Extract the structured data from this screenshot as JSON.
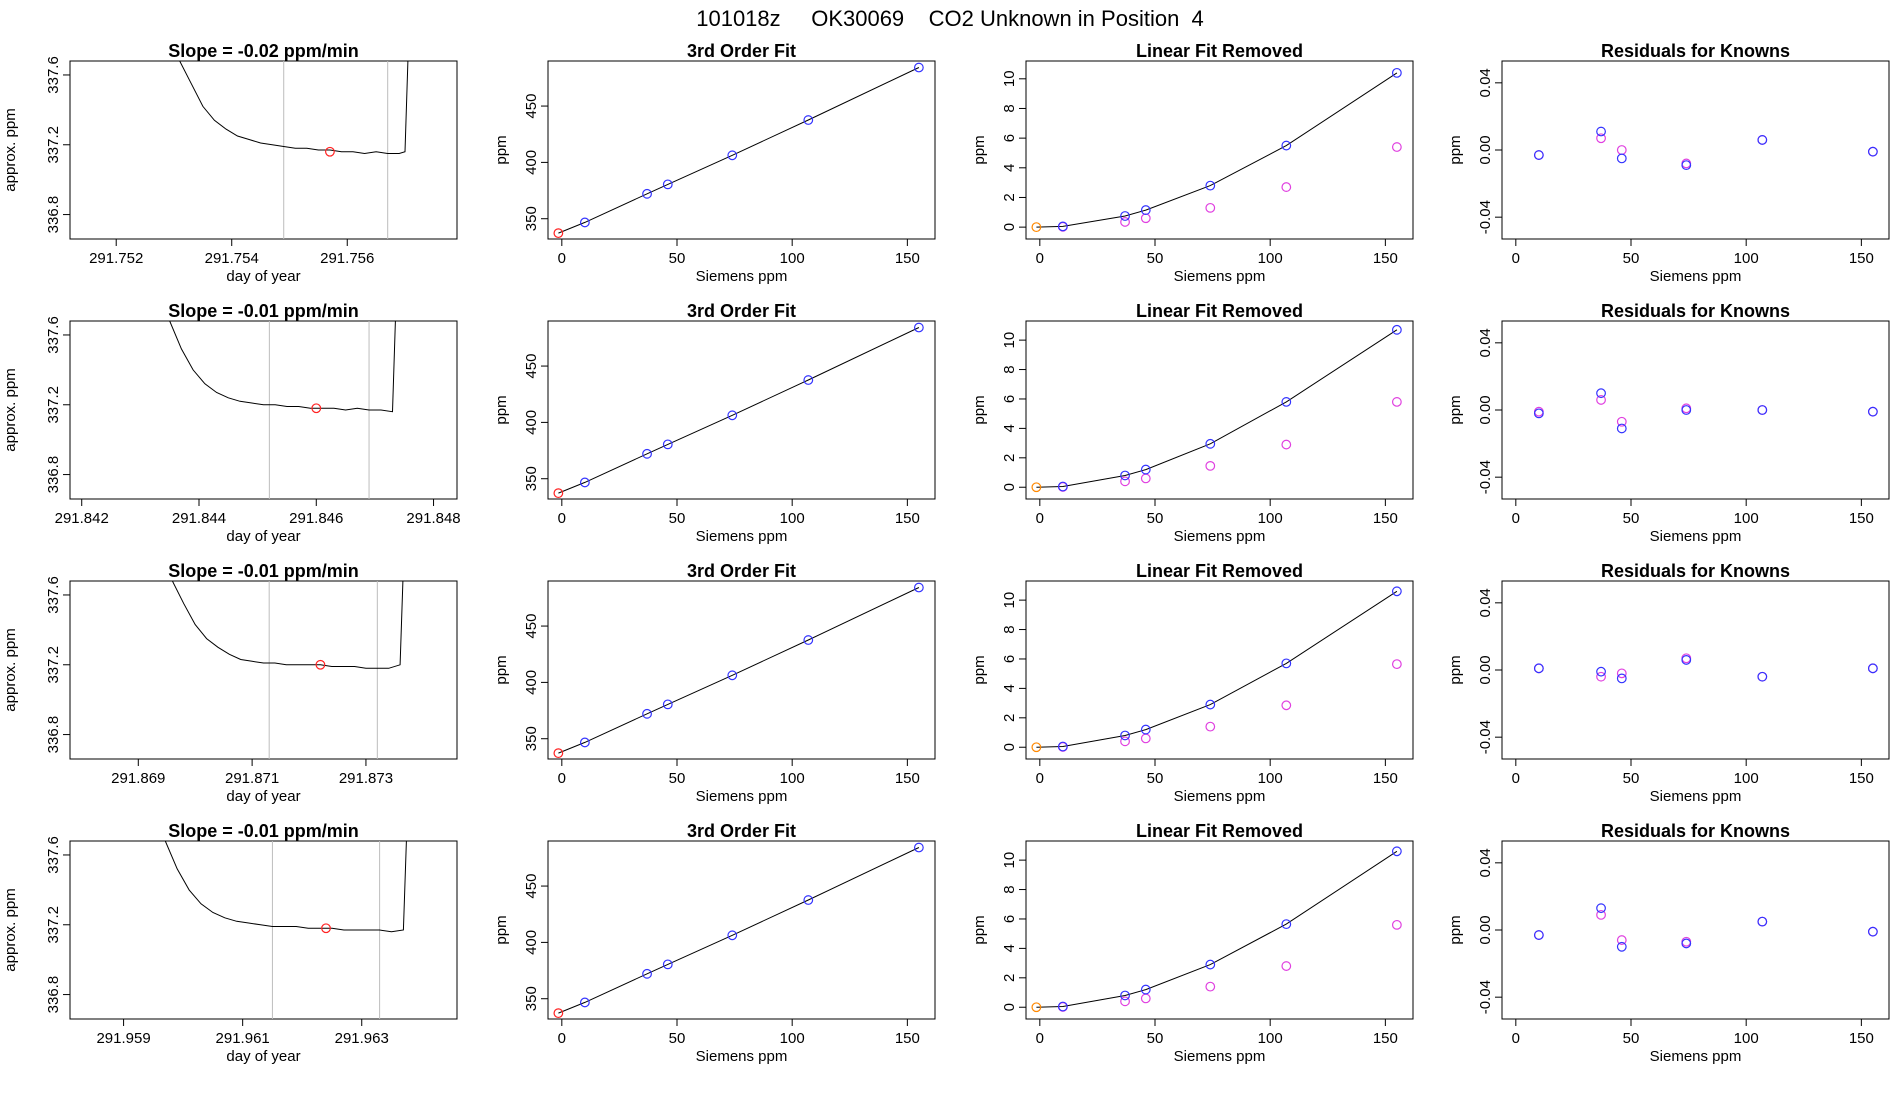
{
  "figure_title": "101018z     OK30069    CO2 Unknown in Position  4",
  "colors": {
    "known": "#3333ff",
    "unknown": "#ff2222",
    "linear_removed": "#e040e0",
    "zero": "#ff8800",
    "curve": "#000000",
    "window": "#bdbdbd"
  },
  "chart_data": [
    {
      "type": "line",
      "row": 1,
      "column": "drift",
      "title": "Slope =  -0.02  ppm/min",
      "xlabel": "day of year",
      "ylabel": "approx. ppm",
      "xlim": [
        291.7512,
        291.7579
      ],
      "ylim": [
        336.66,
        337.68
      ],
      "xticks": [
        291.752,
        291.754,
        291.756
      ],
      "xtick_labels": [
        "291.752",
        "291.754",
        "291.756"
      ],
      "yticks": [
        336.8,
        337.2,
        337.6
      ],
      "ytick_labels": [
        "336.8",
        "337.2",
        "337.6"
      ],
      "averaging_window": [
        291.7549,
        291.7567
      ],
      "unknown_point": {
        "x": 291.7557,
        "y": 337.16
      },
      "x": [
        291.7531,
        291.7533,
        291.7535,
        291.7537,
        291.7539,
        291.7541,
        291.7543,
        291.7545,
        291.7547,
        291.7549,
        291.7551,
        291.7553,
        291.7555,
        291.7557,
        291.7559,
        291.7561,
        291.7563,
        291.7565,
        291.7567,
        291.7569,
        291.757,
        291.75705
      ],
      "y": [
        337.68,
        337.55,
        337.42,
        337.34,
        337.29,
        337.25,
        337.23,
        337.21,
        337.2,
        337.19,
        337.18,
        337.18,
        337.17,
        337.17,
        337.16,
        337.16,
        337.15,
        337.16,
        337.15,
        337.15,
        337.16,
        337.68
      ]
    },
    {
      "type": "scatter",
      "row": 1,
      "column": "fit",
      "title": "3rd Order Fit",
      "xlabel": "Siemens ppm",
      "ylabel": "ppm",
      "xlim": [
        -6,
        162
      ],
      "ylim": [
        332,
        490
      ],
      "xticks": [
        0,
        50,
        100,
        150
      ],
      "xtick_labels": [
        "0",
        "50",
        "100",
        "150"
      ],
      "yticks": [
        350,
        400,
        450
      ],
      "ytick_labels": [
        "350",
        "400",
        "450"
      ],
      "knowns": {
        "x": [
          10,
          37,
          46,
          74,
          107,
          155
        ],
        "y": [
          346.7,
          372.1,
          380.5,
          406.3,
          437.6,
          484.2
        ]
      },
      "unknown": {
        "x": -1.5,
        "y": 337.2
      }
    },
    {
      "type": "scatter",
      "row": 1,
      "column": "linear_removed",
      "title": "Linear Fit Removed",
      "xlabel": "Siemens ppm",
      "ylabel": "ppm",
      "xlim": [
        -6,
        162
      ],
      "ylim": [
        -0.8,
        11.2
      ],
      "xticks": [
        0,
        50,
        100,
        150
      ],
      "xtick_labels": [
        "0",
        "50",
        "100",
        "150"
      ],
      "yticks": [
        0,
        2,
        4,
        6,
        8,
        10
      ],
      "ytick_labels": [
        "0",
        "2",
        "4",
        "6",
        "8",
        "10"
      ],
      "knowns": {
        "x": [
          10,
          37,
          46,
          74,
          107,
          155
        ],
        "y": [
          0.05,
          0.75,
          1.15,
          2.8,
          5.5,
          10.4
        ]
      },
      "linear_removed_points": {
        "x": [
          10,
          37,
          46,
          74,
          107,
          155
        ],
        "y": [
          0.02,
          0.35,
          0.6,
          1.3,
          2.7,
          5.4
        ]
      },
      "unknown": {
        "x": -1.5,
        "y": 0.0
      }
    },
    {
      "type": "scatter",
      "row": 1,
      "column": "residuals",
      "title": "Residuals for Knowns",
      "xlabel": "Siemens ppm",
      "ylabel": "ppm",
      "xlim": [
        -6,
        162
      ],
      "ylim": [
        -0.053,
        0.053
      ],
      "xticks": [
        0,
        50,
        100,
        150
      ],
      "xtick_labels": [
        "0",
        "50",
        "100",
        "150"
      ],
      "yticks": [
        -0.04,
        0.0,
        0.04
      ],
      "ytick_labels": [
        "-0.04",
        "0.00",
        "0.04"
      ],
      "knowns": {
        "x": [
          10,
          37,
          46,
          74,
          107,
          155
        ],
        "y": [
          -0.003,
          0.011,
          -0.005,
          -0.009,
          0.006,
          -0.001
        ]
      },
      "fit_points": {
        "x": [
          10,
          37,
          46,
          74,
          107,
          155
        ],
        "y": [
          -0.003,
          0.007,
          0.0,
          -0.008,
          0.006,
          -0.001
        ]
      }
    },
    {
      "type": "line",
      "row": 2,
      "column": "drift",
      "title": "Slope =  -0.01  ppm/min",
      "xlabel": "day of year",
      "ylabel": "approx. ppm",
      "xlim": [
        291.8418,
        291.8484
      ],
      "ylim": [
        336.66,
        337.68
      ],
      "xticks": [
        291.842,
        291.844,
        291.846,
        291.848
      ],
      "xtick_labels": [
        "291.842",
        "291.844",
        "291.846",
        "291.848"
      ],
      "yticks": [
        336.8,
        337.2,
        337.6
      ],
      "ytick_labels": [
        "336.8",
        "337.2",
        "337.6"
      ],
      "averaging_window": [
        291.8452,
        291.8469
      ],
      "unknown_point": {
        "x": 291.846,
        "y": 337.18
      },
      "x": [
        291.8435,
        291.8437,
        291.8439,
        291.8441,
        291.8443,
        291.8445,
        291.8447,
        291.8449,
        291.8451,
        291.8453,
        291.8455,
        291.8457,
        291.8459,
        291.8461,
        291.8463,
        291.8465,
        291.8467,
        291.8469,
        291.8471,
        291.8473,
        291.84735
      ],
      "y": [
        337.68,
        337.52,
        337.4,
        337.32,
        337.27,
        337.24,
        337.22,
        337.21,
        337.2,
        337.2,
        337.19,
        337.19,
        337.18,
        337.18,
        337.18,
        337.17,
        337.18,
        337.17,
        337.17,
        337.16,
        337.68
      ]
    },
    {
      "type": "scatter",
      "row": 2,
      "column": "fit",
      "title": "3rd Order Fit",
      "xlabel": "Siemens ppm",
      "ylabel": "ppm",
      "xlim": [
        -6,
        162
      ],
      "ylim": [
        332,
        490
      ],
      "xticks": [
        0,
        50,
        100,
        150
      ],
      "xtick_labels": [
        "0",
        "50",
        "100",
        "150"
      ],
      "yticks": [
        350,
        400,
        450
      ],
      "ytick_labels": [
        "350",
        "400",
        "450"
      ],
      "knowns": {
        "x": [
          10,
          37,
          46,
          74,
          107,
          155
        ],
        "y": [
          346.7,
          372.1,
          380.5,
          406.3,
          437.6,
          484.2
        ]
      },
      "unknown": {
        "x": -1.5,
        "y": 337.2
      }
    },
    {
      "type": "scatter",
      "row": 2,
      "column": "linear_removed",
      "title": "Linear Fit Removed",
      "xlabel": "Siemens ppm",
      "ylabel": "ppm",
      "xlim": [
        -6,
        162
      ],
      "ylim": [
        -0.8,
        11.3
      ],
      "xticks": [
        0,
        50,
        100,
        150
      ],
      "xtick_labels": [
        "0",
        "50",
        "100",
        "150"
      ],
      "yticks": [
        0,
        2,
        4,
        6,
        8,
        10
      ],
      "ytick_labels": [
        "0",
        "2",
        "4",
        "6",
        "8",
        "10"
      ],
      "knowns": {
        "x": [
          10,
          37,
          46,
          74,
          107,
          155
        ],
        "y": [
          0.05,
          0.8,
          1.2,
          2.95,
          5.8,
          10.7
        ]
      },
      "linear_removed_points": {
        "x": [
          10,
          37,
          46,
          74,
          107,
          155
        ],
        "y": [
          0.02,
          0.4,
          0.6,
          1.45,
          2.9,
          5.8
        ]
      },
      "unknown": {
        "x": -1.5,
        "y": 0.0
      }
    },
    {
      "type": "scatter",
      "row": 2,
      "column": "residuals",
      "title": "Residuals for Knowns",
      "xlabel": "Siemens ppm",
      "ylabel": "ppm",
      "xlim": [
        -6,
        162
      ],
      "ylim": [
        -0.053,
        0.053
      ],
      "xticks": [
        0,
        50,
        100,
        150
      ],
      "xtick_labels": [
        "0",
        "50",
        "100",
        "150"
      ],
      "yticks": [
        -0.04,
        0.0,
        0.04
      ],
      "ytick_labels": [
        "-0.04",
        "0.00",
        "0.04"
      ],
      "knowns": {
        "x": [
          10,
          37,
          46,
          74,
          107,
          155
        ],
        "y": [
          -0.002,
          0.01,
          -0.011,
          0.0,
          0.0,
          -0.001
        ]
      },
      "fit_points": {
        "x": [
          10,
          37,
          46,
          74,
          107,
          155
        ],
        "y": [
          -0.001,
          0.006,
          -0.007,
          0.001,
          0.0,
          -0.001
        ]
      }
    },
    {
      "type": "line",
      "row": 3,
      "column": "drift",
      "title": "Slope =  -0.01  ppm/min",
      "xlabel": "day of year",
      "ylabel": "approx. ppm",
      "xlim": [
        291.8678,
        291.8746
      ],
      "ylim": [
        336.66,
        337.68
      ],
      "xticks": [
        291.869,
        291.871,
        291.873
      ],
      "xtick_labels": [
        "291.869",
        "291.871",
        "291.873"
      ],
      "yticks": [
        336.8,
        337.2,
        337.6
      ],
      "ytick_labels": [
        "336.8",
        "337.2",
        "337.6"
      ],
      "averaging_window": [
        291.8713,
        291.8732
      ],
      "unknown_point": {
        "x": 291.8722,
        "y": 337.2
      },
      "x": [
        291.8696,
        291.8698,
        291.87,
        291.8702,
        291.8704,
        291.8706,
        291.8708,
        291.871,
        291.8712,
        291.8714,
        291.8716,
        291.8718,
        291.872,
        291.8722,
        291.8724,
        291.8726,
        291.8728,
        291.873,
        291.8732,
        291.8734,
        291.8736,
        291.87365
      ],
      "y": [
        337.68,
        337.55,
        337.43,
        337.35,
        337.3,
        337.26,
        337.23,
        337.22,
        337.21,
        337.21,
        337.2,
        337.2,
        337.2,
        337.2,
        337.19,
        337.19,
        337.19,
        337.18,
        337.18,
        337.18,
        337.2,
        337.68
      ]
    },
    {
      "type": "scatter",
      "row": 3,
      "column": "fit",
      "title": "3rd Order Fit",
      "xlabel": "Siemens ppm",
      "ylabel": "ppm",
      "xlim": [
        -6,
        162
      ],
      "ylim": [
        332,
        490
      ],
      "xticks": [
        0,
        50,
        100,
        150
      ],
      "xtick_labels": [
        "0",
        "50",
        "100",
        "150"
      ],
      "yticks": [
        350,
        400,
        450
      ],
      "ytick_labels": [
        "350",
        "400",
        "450"
      ],
      "knowns": {
        "x": [
          10,
          37,
          46,
          74,
          107,
          155
        ],
        "y": [
          346.7,
          372.1,
          380.5,
          406.3,
          437.6,
          484.2
        ]
      },
      "unknown": {
        "x": -1.5,
        "y": 337.2
      }
    },
    {
      "type": "scatter",
      "row": 3,
      "column": "linear_removed",
      "title": "Linear Fit Removed",
      "xlabel": "Siemens ppm",
      "ylabel": "ppm",
      "xlim": [
        -6,
        162
      ],
      "ylim": [
        -0.8,
        11.3
      ],
      "xticks": [
        0,
        50,
        100,
        150
      ],
      "xtick_labels": [
        "0",
        "50",
        "100",
        "150"
      ],
      "yticks": [
        0,
        2,
        4,
        6,
        8,
        10
      ],
      "ytick_labels": [
        "0",
        "2",
        "4",
        "6",
        "8",
        "10"
      ],
      "knowns": {
        "x": [
          10,
          37,
          46,
          74,
          107,
          155
        ],
        "y": [
          0.05,
          0.8,
          1.2,
          2.9,
          5.7,
          10.6
        ]
      },
      "linear_removed_points": {
        "x": [
          10,
          37,
          46,
          74,
          107,
          155
        ],
        "y": [
          0.02,
          0.4,
          0.6,
          1.4,
          2.85,
          5.65
        ]
      },
      "unknown": {
        "x": -1.5,
        "y": 0.0
      }
    },
    {
      "type": "scatter",
      "row": 3,
      "column": "residuals",
      "title": "Residuals for Knowns",
      "xlabel": "Siemens ppm",
      "ylabel": "ppm",
      "xlim": [
        -6,
        162
      ],
      "ylim": [
        -0.053,
        0.053
      ],
      "xticks": [
        0,
        50,
        100,
        150
      ],
      "xtick_labels": [
        "0",
        "50",
        "100",
        "150"
      ],
      "yticks": [
        -0.04,
        0.0,
        0.04
      ],
      "ytick_labels": [
        "-0.04",
        "0.00",
        "0.04"
      ],
      "knowns": {
        "x": [
          10,
          37,
          46,
          74,
          107,
          155
        ],
        "y": [
          0.001,
          -0.001,
          -0.005,
          0.006,
          -0.004,
          0.001
        ]
      },
      "fit_points": {
        "x": [
          10,
          37,
          46,
          74,
          107,
          155
        ],
        "y": [
          0.001,
          -0.004,
          -0.002,
          0.007,
          -0.004,
          0.001
        ]
      }
    },
    {
      "type": "line",
      "row": 4,
      "column": "drift",
      "title": "Slope =  -0.01  ppm/min",
      "xlabel": "day of year",
      "ylabel": "approx. ppm",
      "xlim": [
        291.9581,
        291.9646
      ],
      "ylim": [
        336.66,
        337.68
      ],
      "xticks": [
        291.959,
        291.961,
        291.963
      ],
      "xtick_labels": [
        "291.959",
        "291.961",
        "291.963"
      ],
      "yticks": [
        336.8,
        337.2,
        337.6
      ],
      "ytick_labels": [
        "336.8",
        "337.2",
        "337.6"
      ],
      "averaging_window": [
        291.9615,
        291.9633
      ],
      "unknown_point": {
        "x": 291.9624,
        "y": 337.18
      },
      "x": [
        291.9597,
        291.9599,
        291.9601,
        291.9603,
        291.9605,
        291.9607,
        291.9609,
        291.9611,
        291.9613,
        291.9615,
        291.9617,
        291.9619,
        291.9621,
        291.9623,
        291.9625,
        291.9627,
        291.9629,
        291.9631,
        291.9633,
        291.9635,
        291.9637,
        291.96375
      ],
      "y": [
        337.68,
        337.52,
        337.4,
        337.32,
        337.27,
        337.24,
        337.22,
        337.21,
        337.2,
        337.19,
        337.19,
        337.19,
        337.18,
        337.18,
        337.18,
        337.17,
        337.17,
        337.17,
        337.17,
        337.16,
        337.17,
        337.68
      ]
    },
    {
      "type": "scatter",
      "row": 4,
      "column": "fit",
      "title": "3rd Order Fit",
      "xlabel": "Siemens ppm",
      "ylabel": "ppm",
      "xlim": [
        -6,
        162
      ],
      "ylim": [
        332,
        490
      ],
      "xticks": [
        0,
        50,
        100,
        150
      ],
      "xtick_labels": [
        "0",
        "50",
        "100",
        "150"
      ],
      "yticks": [
        350,
        400,
        450
      ],
      "ytick_labels": [
        "350",
        "400",
        "450"
      ],
      "knowns": {
        "x": [
          10,
          37,
          46,
          74,
          107,
          155
        ],
        "y": [
          346.7,
          372.1,
          380.5,
          406.3,
          437.6,
          484.2
        ]
      },
      "unknown": {
        "x": -1.5,
        "y": 337.2
      }
    },
    {
      "type": "scatter",
      "row": 4,
      "column": "linear_removed",
      "title": "Linear Fit Removed",
      "xlabel": "Siemens ppm",
      "ylabel": "ppm",
      "xlim": [
        -6,
        162
      ],
      "ylim": [
        -0.8,
        11.3
      ],
      "xticks": [
        0,
        50,
        100,
        150
      ],
      "xtick_labels": [
        "0",
        "50",
        "100",
        "150"
      ],
      "yticks": [
        0,
        2,
        4,
        6,
        8,
        10
      ],
      "ytick_labels": [
        "0",
        "2",
        "4",
        "6",
        "8",
        "10"
      ],
      "knowns": {
        "x": [
          10,
          37,
          46,
          74,
          107,
          155
        ],
        "y": [
          0.05,
          0.8,
          1.2,
          2.9,
          5.65,
          10.6
        ]
      },
      "linear_removed_points": {
        "x": [
          10,
          37,
          46,
          74,
          107,
          155
        ],
        "y": [
          0.02,
          0.4,
          0.6,
          1.4,
          2.8,
          5.6
        ]
      },
      "unknown": {
        "x": -1.5,
        "y": 0.0
      }
    },
    {
      "type": "scatter",
      "row": 4,
      "column": "residuals",
      "title": "Residuals for Knowns",
      "xlabel": "Siemens ppm",
      "ylabel": "ppm",
      "xlim": [
        -6,
        162
      ],
      "ylim": [
        -0.053,
        0.053
      ],
      "xticks": [
        0,
        50,
        100,
        150
      ],
      "xtick_labels": [
        "0",
        "50",
        "100",
        "150"
      ],
      "yticks": [
        -0.04,
        0.0,
        0.04
      ],
      "ytick_labels": [
        "-0.04",
        "0.00",
        "0.04"
      ],
      "knowns": {
        "x": [
          10,
          37,
          46,
          74,
          107,
          155
        ],
        "y": [
          -0.003,
          0.013,
          -0.01,
          -0.008,
          0.005,
          -0.001
        ]
      },
      "fit_points": {
        "x": [
          10,
          37,
          46,
          74,
          107,
          155
        ],
        "y": [
          -0.003,
          0.009,
          -0.006,
          -0.007,
          0.005,
          -0.001
        ]
      }
    }
  ]
}
